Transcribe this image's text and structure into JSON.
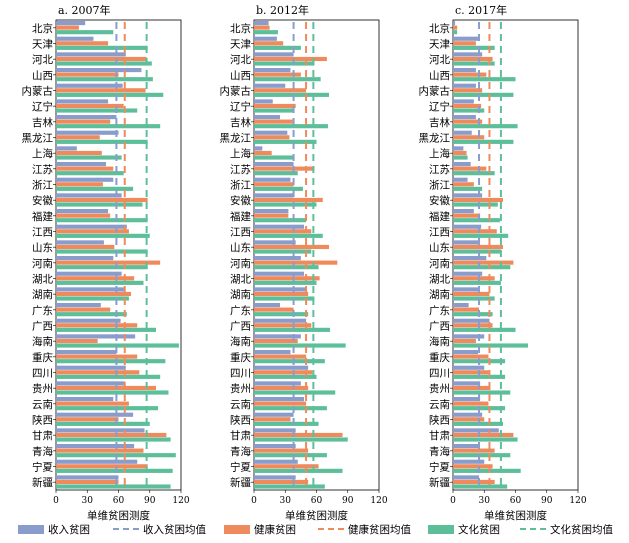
{
  "colors": {
    "income": "#8a9ccc",
    "health": "#ef8a5c",
    "culture": "#5dbf9a",
    "income_mean": "#8a9ccc",
    "health_mean": "#ef8a5c",
    "culture_mean": "#5dbf9a"
  },
  "legend": {
    "income": "收入贫困",
    "income_mean": "收入贫困均值",
    "health": "健康贫困",
    "health_mean": "健康贫困均值",
    "culture": "文化贫困",
    "culture_mean": "文化贫困均值"
  },
  "chart_data": [
    {
      "type": "bar",
      "orientation": "horizontal",
      "title": "a. 2007年",
      "xlabel": "单维贫困测度",
      "xlim": [
        0,
        120
      ],
      "xticks": [
        0,
        30,
        60,
        90,
        120
      ],
      "categories": [
        "北京",
        "天津",
        "河北",
        "山西",
        "内蒙古",
        "辽宁",
        "吉林",
        "黑龙江",
        "上海",
        "江苏",
        "浙江",
        "安徽",
        "福建",
        "江西",
        "山东",
        "河南",
        "湖北",
        "湖南",
        "广东",
        "广西",
        "海南",
        "重庆",
        "四川",
        "贵州",
        "云南",
        "陕西",
        "甘肃",
        "青海",
        "宁夏",
        "新疆"
      ],
      "series": [
        {
          "name": "收入贫困",
          "values": [
            28,
            36,
            67,
            82,
            64,
            50,
            58,
            60,
            20,
            48,
            55,
            63,
            50,
            68,
            46,
            55,
            63,
            66,
            43,
            62,
            76,
            58,
            67,
            66,
            55,
            74,
            85,
            75,
            78,
            60
          ]
        },
        {
          "name": "健康贫困",
          "values": [
            22,
            50,
            87,
            60,
            86,
            65,
            52,
            42,
            44,
            55,
            45,
            88,
            52,
            70,
            56,
            100,
            75,
            72,
            52,
            78,
            40,
            78,
            80,
            96,
            70,
            60,
            106,
            84,
            88,
            60
          ]
        },
        {
          "name": "文化贫困",
          "values": [
            55,
            88,
            92,
            93,
            103,
            78,
            100,
            88,
            63,
            65,
            74,
            83,
            88,
            90,
            88,
            88,
            84,
            70,
            68,
            96,
            118,
            105,
            100,
            108,
            98,
            90,
            110,
            115,
            112,
            110
          ]
        }
      ],
      "means": {
        "收入贫困均值": 58,
        "健康贫困均值": 66,
        "文化贫困均值": 87
      }
    },
    {
      "type": "bar",
      "orientation": "horizontal",
      "title": "b. 2012年",
      "xlabel": "单维贫困测度",
      "xlim": [
        0,
        120
      ],
      "xticks": [
        0,
        30,
        60,
        90,
        120
      ],
      "categories": [
        "北京",
        "天津",
        "河北",
        "山西",
        "内蒙古",
        "辽宁",
        "吉林",
        "黑龙江",
        "上海",
        "江苏",
        "浙江",
        "安徽",
        "福建",
        "江西",
        "山东",
        "河南",
        "湖北",
        "湖南",
        "广东",
        "广西",
        "海南",
        "重庆",
        "四川",
        "贵州",
        "云南",
        "陕西",
        "甘肃",
        "青海",
        "宁夏",
        "新疆"
      ],
      "series": [
        {
          "name": "收入贫困",
          "values": [
            14,
            22,
            38,
            35,
            30,
            18,
            25,
            32,
            8,
            38,
            35,
            38,
            33,
            48,
            40,
            45,
            48,
            50,
            25,
            50,
            45,
            35,
            52,
            45,
            48,
            38,
            40,
            40,
            42,
            40
          ]
        },
        {
          "name": "健康贫困",
          "values": [
            15,
            28,
            70,
            45,
            50,
            40,
            37,
            34,
            17,
            58,
            38,
            66,
            33,
            55,
            72,
            80,
            63,
            52,
            38,
            55,
            42,
            50,
            56,
            52,
            50,
            35,
            85,
            52,
            62,
            52
          ]
        },
        {
          "name": "文化贫困",
          "values": [
            23,
            45,
            58,
            64,
            72,
            38,
            71,
            60,
            38,
            42,
            47,
            60,
            50,
            66,
            55,
            62,
            60,
            58,
            52,
            73,
            88,
            68,
            60,
            78,
            70,
            62,
            90,
            70,
            85,
            68
          ]
        }
      ],
      "means": {
        "收入贫困均值": 38,
        "健康贫困均值": 50,
        "文化贫困均值": 57
      }
    },
    {
      "type": "bar",
      "orientation": "horizontal",
      "title": "c. 2017年",
      "xlabel": "单维贫困测度",
      "xlim": [
        0,
        120
      ],
      "xticks": [
        0,
        30,
        60,
        90,
        120
      ],
      "categories": [
        "北京",
        "天津",
        "河北",
        "山西",
        "内蒙古",
        "辽宁",
        "吉林",
        "黑龙江",
        "上海",
        "江苏",
        "浙江",
        "安徽",
        "福建",
        "江西",
        "山东",
        "河南",
        "湖北",
        "湖南",
        "广东",
        "广西",
        "海南",
        "重庆",
        "四川",
        "贵州",
        "云南",
        "陕西",
        "甘肃",
        "青海",
        "宁夏",
        "新疆"
      ],
      "series": [
        {
          "name": "收入贫困",
          "values": [
            2,
            25,
            28,
            22,
            22,
            20,
            22,
            18,
            10,
            17,
            14,
            28,
            20,
            27,
            24,
            32,
            28,
            24,
            15,
            35,
            30,
            24,
            30,
            26,
            26,
            28,
            44,
            24,
            30,
            25
          ]
        },
        {
          "name": "健康贫困",
          "values": [
            4,
            22,
            38,
            32,
            28,
            27,
            28,
            30,
            13,
            32,
            20,
            48,
            26,
            42,
            48,
            58,
            40,
            35,
            25,
            38,
            22,
            34,
            34,
            36,
            34,
            30,
            58,
            40,
            38,
            40
          ]
        },
        {
          "name": "文化贫困",
          "values": [
            4,
            40,
            40,
            60,
            58,
            30,
            62,
            58,
            14,
            40,
            28,
            43,
            45,
            53,
            46,
            55,
            46,
            40,
            38,
            60,
            72,
            50,
            50,
            55,
            50,
            48,
            62,
            55,
            65,
            52
          ]
        }
      ],
      "means": {
        "收入贫困均值": 25,
        "健康贫困均值": 35,
        "文化贫困均值": 46
      }
    }
  ]
}
